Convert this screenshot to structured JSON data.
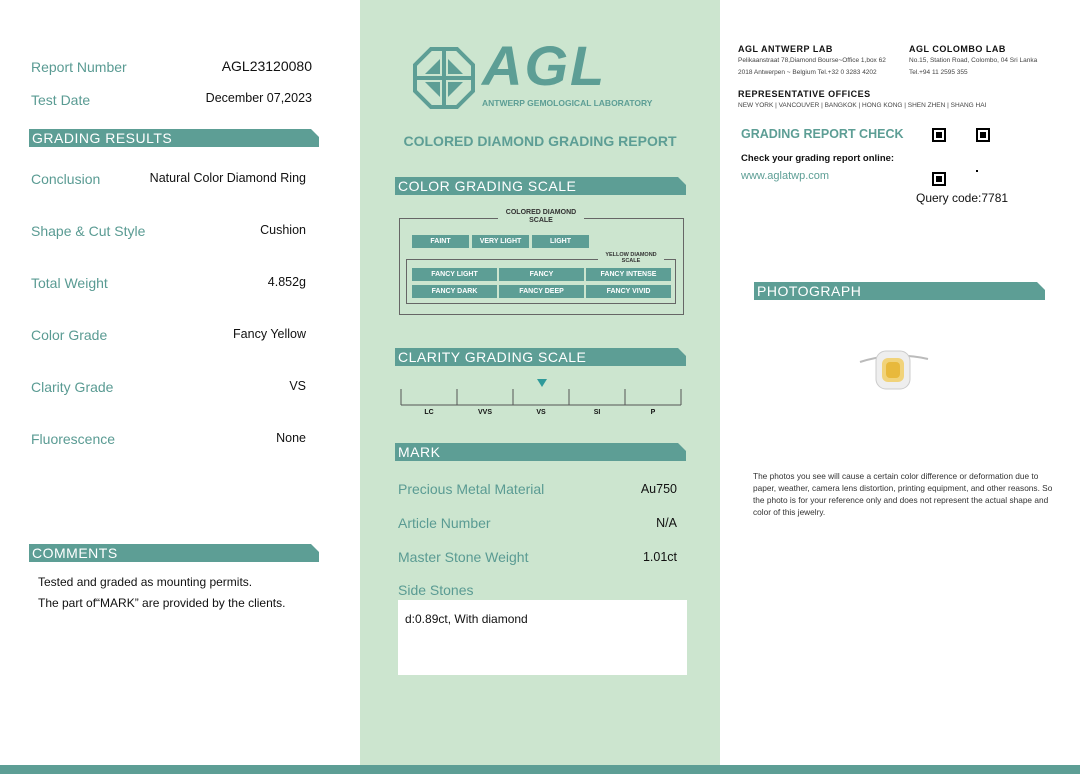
{
  "left": {
    "report_number_label": "Report Number",
    "report_number": "AGL23120080",
    "test_date_label": "Test Date",
    "test_date": "December 07,2023",
    "grading_results_title": "GRADING RESULTS",
    "results": [
      {
        "label": "Conclusion",
        "value": "Natural Color Diamond Ring"
      },
      {
        "label": "Shape & Cut Style",
        "value": "Cushion"
      },
      {
        "label": "Total Weight",
        "value": "4.852g"
      },
      {
        "label": "Color Grade",
        "value": "Fancy Yellow"
      },
      {
        "label": "Clarity Grade",
        "value": "VS"
      },
      {
        "label": "Fluorescence",
        "value": "None"
      }
    ],
    "comments_title": "COMMENTS",
    "comments": [
      "Tested and graded as mounting permits.",
      "The part of“MARK” are provided by the clients."
    ]
  },
  "middle": {
    "logo_text": "AGL",
    "logo_subtitle": "ANTWERP GEMOLOGICAL LABORATORY",
    "report_title": "COLORED DIAMOND GRADING REPORT",
    "color_scale_title": "COLOR GRADING SCALE",
    "colored_diamond_scale_label": [
      "COLORED DIAMOND",
      "SCALE"
    ],
    "colored_grades": [
      "FAINT",
      "VERY LIGHT",
      "LIGHT"
    ],
    "yellow_diamond_scale_label": [
      "YELLOW DIAMOND",
      "SCALE"
    ],
    "yellow_grades": [
      "FANCY LIGHT",
      "FANCY",
      "FANCY INTENSE",
      "FANCY DARK",
      "FANCY DEEP",
      "FANCY VIVID"
    ],
    "clarity_scale_title": "CLARITY GRADING SCALE",
    "clarity_grades": [
      "LC",
      "VVS",
      "VS",
      "SI",
      "P"
    ],
    "clarity_selected": "VS",
    "mark_title": "MARK",
    "mark": [
      {
        "label": "Precious Metal Material",
        "value": "Au750"
      },
      {
        "label": "Article Number",
        "value": "N/A"
      },
      {
        "label": "Master Stone Weight",
        "value": "1.01ct"
      }
    ],
    "side_stones_label": "Side Stones",
    "side_stones": "d:0.89ct, With diamond",
    "accent": "#5d9e95",
    "background": "#cce5cf"
  },
  "right": {
    "antwerp_title": "AGL ANTWERP LAB",
    "antwerp_lines": [
      "Pelikaanstraat 78,Diamond Bourse~Office 1,box 62",
      "2018 Antwerpen ~ Belgium  Tel.+32 0 3283 4202"
    ],
    "colombo_title": "AGL COLOMBO LAB",
    "colombo_lines": [
      "No.15, Station Road, Colombo, 04 Sri Lanka",
      "Tel.+94 11 2595 355"
    ],
    "offices_title": "REPRESENTATIVE OFFICES",
    "offices": "NEW YORK  |  VANCOUVER  |  BANGKOK  |  HONG KONG  |  SHEN ZHEN  |  SHANG HAI",
    "check_title": "GRADING REPORT CHECK",
    "check_text": "Check your grading report online:",
    "check_url": "www.aglatwp.com",
    "query_code": "Query code:7781",
    "photograph_title": "PHOTOGRAPH",
    "disclaimer": "The photos you see will cause a certain color difference or deformation due to paper, weather, camera lens distortion, printing equipment, and other reasons. So the photo is for your reference only and does not represent the actual shape and color of this jewelry."
  }
}
